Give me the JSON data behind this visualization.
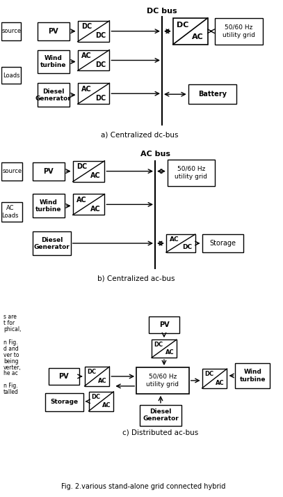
{
  "bg_color": "#ffffff",
  "fig_width": 4.07,
  "fig_height": 7.13,
  "caption": "Fig. 2.various stand-alone grid connected hybrid",
  "section_a_label": "a) Centralized dc-bus",
  "section_b_label": "b) Centralized ac-bus",
  "section_c_label": "c) Distributed ac-bus",
  "dc_bus_label": "DC bus",
  "ac_bus_label": "AC bus"
}
